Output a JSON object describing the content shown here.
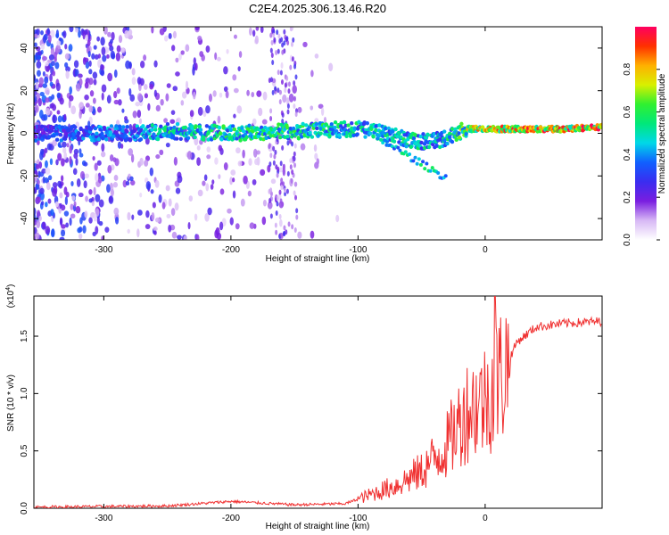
{
  "title": "C2E4.2025.306.13.46.R20",
  "chart_data": [
    {
      "type": "heatmap",
      "name": "spectrogram",
      "xlabel": "Height of straight line (km)",
      "ylabel": "Frequency (Hz)",
      "xlim": [
        -355,
        92
      ],
      "ylim": [
        -50,
        50
      ],
      "xticks": [
        -300,
        -200,
        -100,
        0
      ],
      "yticks": [
        -40,
        -20,
        0,
        20,
        40
      ],
      "colorbar": {
        "label": "Normalized spectral amplitude",
        "range": [
          0,
          1
        ],
        "ticks": [
          0.0,
          0.2,
          0.4,
          0.6,
          0.8
        ],
        "colormap": [
          "#ffffff",
          "#d7b8f5",
          "#7a1ee0",
          "#3a2df0",
          "#1060ff",
          "#00d8e8",
          "#00e87a",
          "#30f030",
          "#d8f000",
          "#ffb000",
          "#ff3000",
          "#ff0060"
        ]
      },
      "ridge": [
        {
          "x": -355,
          "y": 0,
          "amp": 0.35
        },
        {
          "x": -280,
          "y": 0,
          "amp": 0.45
        },
        {
          "x": -250,
          "y": 1,
          "amp": 0.55
        },
        {
          "x": -200,
          "y": 0,
          "amp": 0.6
        },
        {
          "x": -150,
          "y": 1,
          "amp": 0.6
        },
        {
          "x": -100,
          "y": 2,
          "amp": 0.55
        },
        {
          "x": -80,
          "y": 0,
          "amp": 0.55
        },
        {
          "x": -55,
          "y": -4,
          "amp": 0.55
        },
        {
          "x": -35,
          "y": -3,
          "amp": 0.5
        },
        {
          "x": -15,
          "y": 2,
          "amp": 0.75
        },
        {
          "x": 10,
          "y": 2,
          "amp": 0.9
        },
        {
          "x": 60,
          "y": 2,
          "amp": 0.95
        },
        {
          "x": 92,
          "y": 3,
          "amp": 0.95
        }
      ]
    },
    {
      "type": "line",
      "name": "snr",
      "xlabel": "Height of straight line (km)",
      "ylabel": "SNR (10 * v/v)",
      "scale_label": "(x10",
      "scale_exponent": "4",
      "scale_close": ")",
      "xlim": [
        -355,
        92
      ],
      "ylim": [
        0,
        1.85
      ],
      "xticks": [
        -300,
        -200,
        -100,
        0
      ],
      "yticks": [
        0.0,
        0.5,
        1.0,
        1.5
      ],
      "color": "#f03030",
      "trend": [
        {
          "x": -355,
          "y": 0.01
        },
        {
          "x": -250,
          "y": 0.02
        },
        {
          "x": -200,
          "y": 0.06
        },
        {
          "x": -150,
          "y": 0.03
        },
        {
          "x": -110,
          "y": 0.04
        },
        {
          "x": -90,
          "y": 0.12
        },
        {
          "x": -70,
          "y": 0.2
        },
        {
          "x": -50,
          "y": 0.32
        },
        {
          "x": -30,
          "y": 0.55
        },
        {
          "x": -15,
          "y": 0.85
        },
        {
          "x": 0,
          "y": 0.95
        },
        {
          "x": 8,
          "y": 1.1
        },
        {
          "x": 15,
          "y": 1.2
        },
        {
          "x": 25,
          "y": 1.45
        },
        {
          "x": 40,
          "y": 1.58
        },
        {
          "x": 60,
          "y": 1.61
        },
        {
          "x": 92,
          "y": 1.63
        }
      ],
      "peak": {
        "x": 8,
        "y": 1.85
      }
    }
  ]
}
